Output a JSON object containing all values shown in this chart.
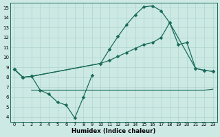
{
  "xlabel": "Humidex (Indice chaleur)",
  "xlim": [
    -0.5,
    23.5
  ],
  "ylim": [
    3.5,
    15.5
  ],
  "xticks": [
    0,
    1,
    2,
    3,
    4,
    5,
    6,
    7,
    8,
    9,
    10,
    11,
    12,
    13,
    14,
    15,
    16,
    17,
    18,
    19,
    20,
    21,
    22,
    23
  ],
  "yticks": [
    4,
    5,
    6,
    7,
    8,
    9,
    10,
    11,
    12,
    13,
    14,
    15
  ],
  "bg_color": "#cce9e4",
  "grid_color": "#afd4cc",
  "line_color": "#1a6b5a",
  "curve1_x": [
    0,
    1,
    2,
    10,
    11,
    12,
    13,
    14,
    15,
    16,
    17,
    18,
    21,
    22,
    23
  ],
  "curve1_y": [
    8.8,
    8.0,
    8.1,
    9.4,
    10.8,
    12.1,
    13.3,
    14.3,
    15.1,
    15.2,
    14.7,
    13.5,
    8.9,
    8.7,
    8.6
  ],
  "curve2_x": [
    0,
    1,
    2,
    10,
    11,
    12,
    13,
    14,
    15,
    16,
    17,
    18,
    19,
    20,
    21,
    22,
    23
  ],
  "curve2_y": [
    8.8,
    8.0,
    8.1,
    9.4,
    9.7,
    10.1,
    10.5,
    10.9,
    11.3,
    11.5,
    12.0,
    13.5,
    11.3,
    11.5,
    8.9,
    8.7,
    8.6
  ],
  "curve3_x": [
    0,
    1,
    2,
    3,
    4,
    5,
    6,
    7,
    8,
    9
  ],
  "curve3_y": [
    8.8,
    8.0,
    8.1,
    6.7,
    6.3,
    5.5,
    5.2,
    3.9,
    6.0,
    8.2
  ],
  "curve4_x": [
    2,
    3,
    4,
    5,
    6,
    7,
    8,
    9,
    10,
    11,
    12,
    13,
    14,
    15,
    16,
    17,
    18,
    19,
    20,
    21,
    22,
    23
  ],
  "curve4_y": [
    6.7,
    6.7,
    6.7,
    6.7,
    6.7,
    6.7,
    6.7,
    6.7,
    6.7,
    6.7,
    6.7,
    6.7,
    6.7,
    6.7,
    6.7,
    6.7,
    6.7,
    6.7,
    6.7,
    6.7,
    6.7,
    6.8
  ]
}
